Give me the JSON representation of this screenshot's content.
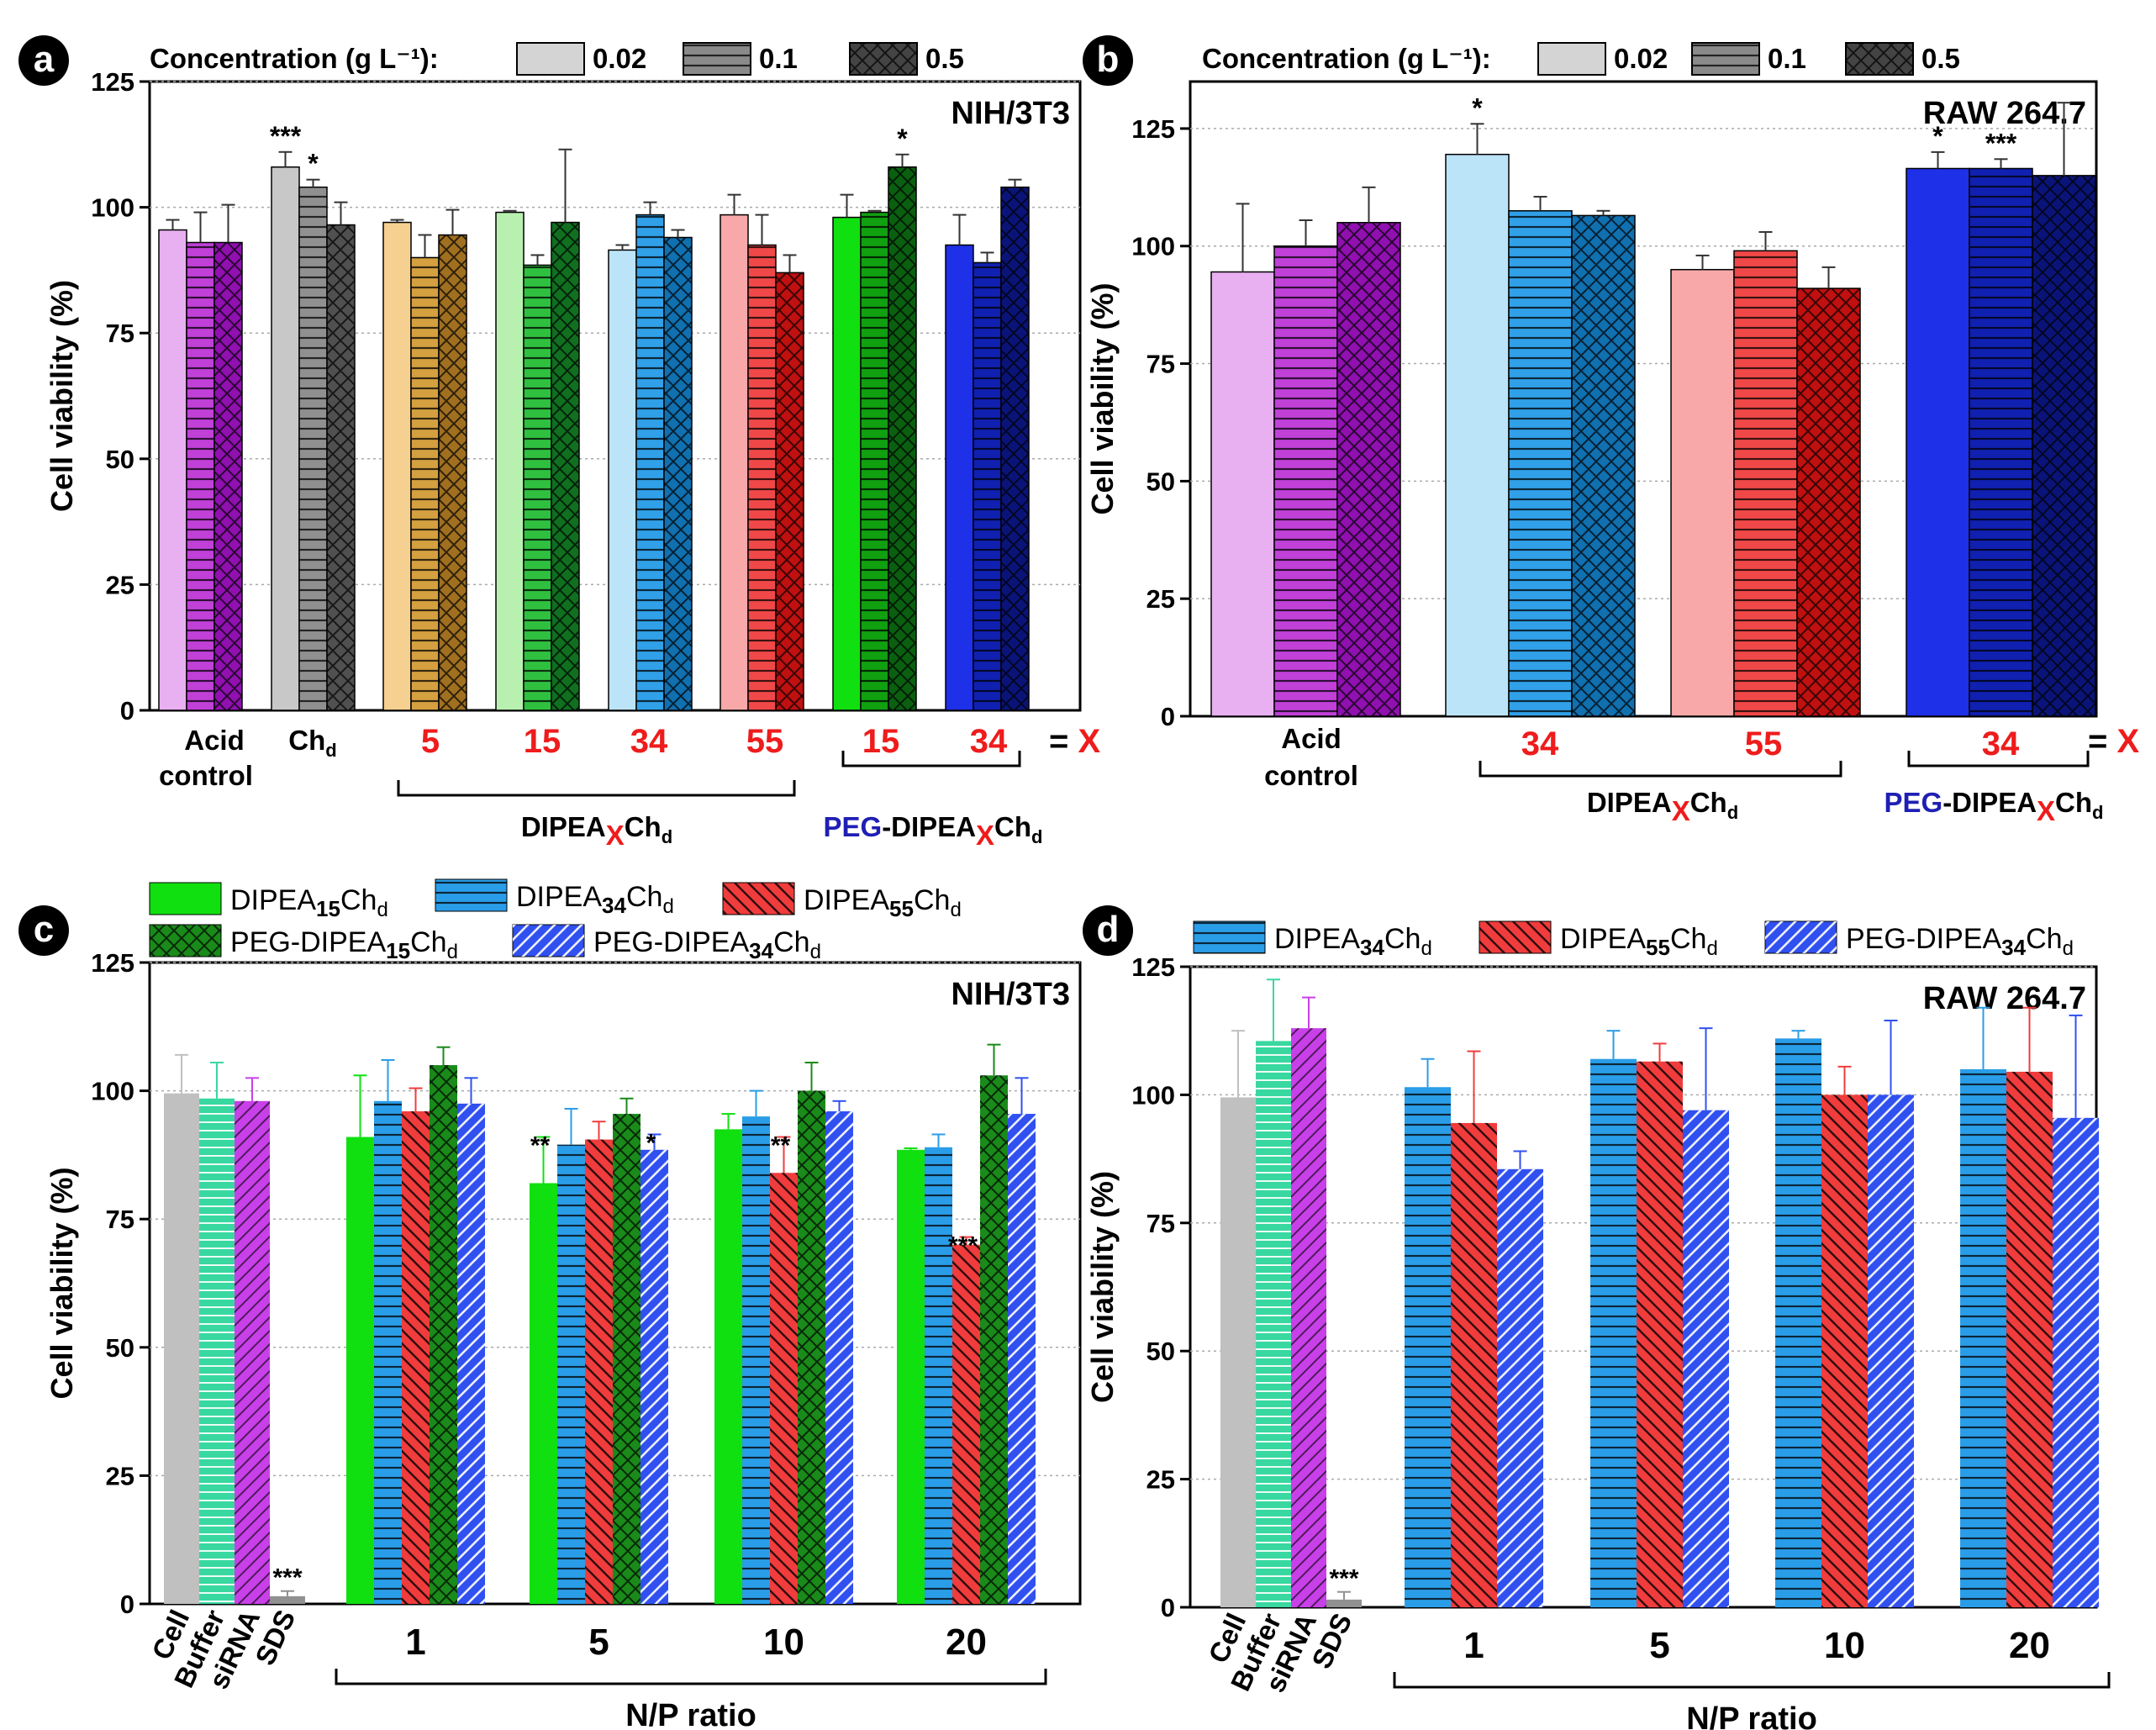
{
  "chart_data": [
    {
      "type": "bar",
      "panel": "a",
      "title": "NIH/3T3",
      "ylabel": "Cell viability (%)",
      "ylim": [
        0,
        125
      ],
      "yticks": [
        "0",
        "25",
        "50",
        "75",
        "100",
        "125"
      ],
      "legend": {
        "title": "Concentration (g L⁻¹):",
        "entries": [
          "0.02",
          "0.1",
          "0.5"
        ]
      },
      "groups": [
        {
          "label": "Acid control",
          "values": [
            95.5,
            93,
            93
          ],
          "errors": [
            2,
            6,
            7.5
          ],
          "sig": [
            "",
            "",
            ""
          ],
          "colors": [
            "#e8b0f0",
            "#c040d8",
            "#9010b0"
          ]
        },
        {
          "label": "Ch_d",
          "values": [
            108,
            104,
            96.5
          ],
          "errors": [
            3,
            1.5,
            4.5
          ],
          "sig": [
            "***",
            "*",
            ""
          ],
          "colors": [
            "#c8c8c8",
            "#909090",
            "#505050"
          ]
        },
        {
          "label": "5",
          "values": [
            97,
            90,
            94.5
          ],
          "errors": [
            0.5,
            4.5,
            5
          ],
          "sig": [
            "",
            "",
            ""
          ],
          "colors": [
            "#f5d090",
            "#d4a040",
            "#a07020"
          ]
        },
        {
          "label": "15",
          "values": [
            99,
            88.5,
            97
          ],
          "errors": [
            0.3,
            2,
            14.5
          ],
          "sig": [
            "",
            "",
            ""
          ],
          "colors": [
            "#b8f0b0",
            "#30c040",
            "#107020"
          ]
        },
        {
          "label": "34",
          "values": [
            91.5,
            98.5,
            94
          ],
          "errors": [
            1,
            2.5,
            1.5
          ],
          "sig": [
            "",
            "",
            ""
          ],
          "colors": [
            "#bce4f8",
            "#30a0e8",
            "#1070b0"
          ]
        },
        {
          "label": "55",
          "values": [
            98.5,
            92.5,
            87
          ],
          "errors": [
            4,
            6,
            3.5
          ],
          "sig": [
            "",
            "",
            ""
          ],
          "colors": [
            "#f8a8a8",
            "#f04848",
            "#c01010"
          ]
        },
        {
          "label": "15",
          "values": [
            98,
            99,
            108
          ],
          "errors": [
            4.5,
            0.3,
            2.5
          ],
          "sig": [
            "",
            "",
            "*"
          ],
          "colors": [
            "#10e010",
            "#10a010",
            "#0a6010"
          ]
        },
        {
          "label": "34",
          "values": [
            92.5,
            89,
            104
          ],
          "errors": [
            6,
            2,
            1.5
          ],
          "sig": [
            "",
            "",
            ""
          ],
          "colors": [
            "#1e30e8",
            "#1020b0",
            "#0a1478"
          ]
        }
      ],
      "bracket_labels": [
        "DIPEA_X Ch_d",
        "PEG-DIPEA_X Ch_d"
      ],
      "x_marker": "= X"
    },
    {
      "type": "bar",
      "panel": "b",
      "title": "RAW 264.7",
      "ylabel": "Cell viability (%)",
      "ylim": [
        0,
        135
      ],
      "yticks": [
        "0",
        "25",
        "50",
        "75",
        "100",
        "125"
      ],
      "legend": {
        "title": "Concentration (g L⁻¹):",
        "entries": [
          "0.02",
          "0.1",
          "0.5"
        ]
      },
      "groups": [
        {
          "label": "Acid control",
          "values": [
            94.5,
            100,
            105
          ],
          "errors": [
            14.5,
            5.5,
            7.5
          ],
          "sig": [
            "",
            "",
            ""
          ],
          "colors": [
            "#e8b0f0",
            "#c040d8",
            "#9010b0"
          ]
        },
        {
          "label": "34",
          "values": [
            119.5,
            107.5,
            106.5
          ],
          "errors": [
            6.5,
            3,
            1
          ],
          "sig": [
            "*",
            "",
            ""
          ],
          "colors": [
            "#bce4f8",
            "#30a0e8",
            "#1070b0"
          ]
        },
        {
          "label": "55",
          "values": [
            95,
            99,
            91
          ],
          "errors": [
            3,
            4,
            4.5
          ],
          "sig": [
            "",
            "",
            ""
          ],
          "colors": [
            "#f8a8a8",
            "#f04848",
            "#c01010"
          ]
        },
        {
          "label": "34",
          "values": [
            116.5,
            116.5,
            115
          ],
          "errors": [
            3.5,
            2,
            15.5
          ],
          "sig": [
            "*",
            "***",
            ""
          ],
          "colors": [
            "#1e30e8",
            "#1020b0",
            "#0a1478"
          ]
        }
      ],
      "bracket_labels": [
        "DIPEA_X Ch_d",
        "PEG-DIPEA_X Ch_d"
      ],
      "x_marker": "= X"
    },
    {
      "type": "bar",
      "panel": "c",
      "title": "NIH/3T3",
      "ylabel": "Cell viability (%)",
      "xlabel": "N/P ratio",
      "ylim": [
        0,
        125
      ],
      "yticks": [
        "0",
        "25",
        "50",
        "75",
        "100",
        "125"
      ],
      "legend": [
        "DIPEA15Chd",
        "DIPEA34Chd",
        "DIPEA55Chd",
        "PEG-DIPEA15Chd",
        "PEG-DIPEA34Chd"
      ],
      "controls": [
        {
          "label": "Cell",
          "value": 99.5,
          "error": 7.5,
          "sig": ""
        },
        {
          "label": "Buffer",
          "value": 98.5,
          "error": 7,
          "sig": ""
        },
        {
          "label": "siRNA",
          "value": 98,
          "error": 4.5,
          "sig": ""
        },
        {
          "label": "SDS",
          "value": 1.5,
          "error": 1,
          "sig": "***"
        }
      ],
      "categories": [
        "1",
        "5",
        "10",
        "20"
      ],
      "series": [
        {
          "name": "DIPEA15Chd",
          "values": [
            91,
            82,
            92.5,
            88.5
          ],
          "errors": [
            12,
            9,
            3,
            0.3
          ],
          "sig": [
            "",
            "**",
            "",
            ""
          ]
        },
        {
          "name": "DIPEA34Chd",
          "values": [
            98,
            89.5,
            95,
            89
          ],
          "errors": [
            8,
            7,
            5,
            2.5
          ],
          "sig": [
            "",
            "",
            "",
            ""
          ]
        },
        {
          "name": "DIPEA55Chd",
          "values": [
            96,
            90.5,
            84,
            70
          ],
          "errors": [
            4.5,
            3.5,
            7,
            1.5
          ],
          "sig": [
            "",
            "",
            "**",
            "***"
          ]
        },
        {
          "name": "PEG-DIPEA15Chd",
          "values": [
            105,
            95.5,
            100,
            103
          ],
          "errors": [
            3.5,
            3,
            5.5,
            6
          ],
          "sig": [
            "",
            "",
            "",
            ""
          ]
        },
        {
          "name": "PEG-DIPEA34Chd",
          "values": [
            97.5,
            88.5,
            96,
            95.5
          ],
          "errors": [
            5,
            3,
            2,
            7
          ],
          "sig": [
            "",
            "*",
            "",
            ""
          ]
        }
      ]
    },
    {
      "type": "bar",
      "panel": "d",
      "title": "RAW 264.7",
      "ylabel": "Cell viability (%)",
      "xlabel": "N/P ratio",
      "ylim": [
        0,
        125
      ],
      "yticks": [
        "0",
        "25",
        "50",
        "75",
        "100",
        "125"
      ],
      "legend": [
        "DIPEA34Chd",
        "DIPEA55Chd",
        "PEG-DIPEA34Chd"
      ],
      "controls": [
        {
          "label": "Cell",
          "value": 99.5,
          "error": 13,
          "sig": ""
        },
        {
          "label": "Buffer",
          "value": 110.5,
          "error": 12,
          "sig": ""
        },
        {
          "label": "siRNA",
          "value": 113,
          "error": 6,
          "sig": ""
        },
        {
          "label": "SDS",
          "value": 1.5,
          "error": 1.5,
          "sig": "***"
        }
      ],
      "categories": [
        "1",
        "5",
        "10",
        "20"
      ],
      "series": [
        {
          "name": "DIPEA34Chd",
          "values": [
            101.5,
            107,
            111,
            105
          ],
          "errors": [
            5.5,
            5.5,
            1.5,
            12
          ],
          "sig": [
            "",
            "",
            "",
            ""
          ]
        },
        {
          "name": "DIPEA55Chd",
          "values": [
            94.5,
            106.5,
            100,
            104.5
          ],
          "errors": [
            14,
            3.5,
            5.5,
            12.5
          ],
          "sig": [
            "",
            "",
            "",
            ""
          ]
        },
        {
          "name": "PEG-DIPEA34Chd",
          "values": [
            85.5,
            97,
            100,
            95.5
          ],
          "errors": [
            3.5,
            16,
            14.5,
            20
          ],
          "sig": [
            "",
            "",
            "",
            ""
          ]
        }
      ]
    }
  ],
  "panel_letters": [
    "a",
    "b",
    "c",
    "d"
  ],
  "labels": {
    "acid": "Acid",
    "control": "control",
    "ch": "Ch",
    "d": "d",
    "dipea": "DIPEA",
    "peg": "PEG",
    "x": "X",
    "eq_x": "= X"
  },
  "colors": {
    "red_label": "#ee1c1c",
    "blue_label": "#1f1fb4",
    "c_s1": "#10e010",
    "c_s2": "#2a9de8",
    "c_s3": "#f03c3c",
    "c_s4": "#1a8a1a",
    "c_s5": "#3050f0",
    "ctrl_cell": "#c0c0c0",
    "ctrl_buffer": "#38d8a0",
    "ctrl_sirna": "#c840e8",
    "ctrl_sds": "#909090"
  }
}
